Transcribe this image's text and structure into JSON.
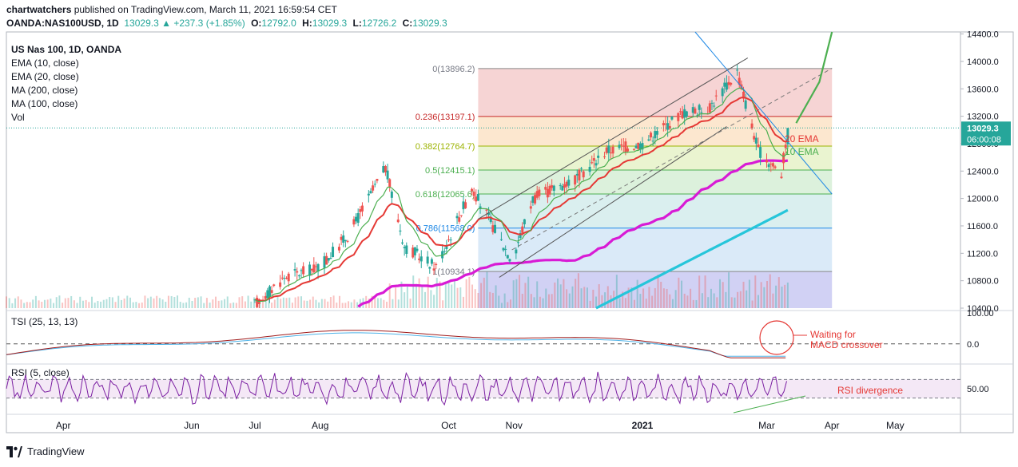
{
  "header": {
    "publisher": "chartwatchers",
    "published_text": " published on TradingView.com, March 11, 2021 16:59:54 CET",
    "symbol": "OANDA:NAS100USD, 1D",
    "last": "13029.3",
    "change": "▲ +237.3 (+1.85%)",
    "o_label": "O:",
    "o_value": "12792.0",
    "h_label": "H:",
    "h_value": "13029.3",
    "l_label": "L:",
    "l_value": "12726.2",
    "c_label": "C:",
    "c_value": "13029.3"
  },
  "legend": {
    "title": "US Nas 100, 1D, OANDA",
    "items": [
      "EMA (10, close)",
      "EMA (20, close)",
      "MA (200, close)",
      "MA (100, close)",
      "Vol"
    ]
  },
  "footer": {
    "brand": "TradingView"
  },
  "colors": {
    "up": "#26a69a",
    "down": "#ef5350",
    "ema10": "#4caf50",
    "ema20": "#e53935",
    "ma100": "#d81bd5",
    "ma200": "#26c6da",
    "tsi": "#a01c1c",
    "tsi_signal": "#4fb3e8",
    "rsi": "#7b1fa2",
    "annotation": "#e53935",
    "trendline": "#1e88e5",
    "arrow": "#4caf50",
    "price_badge": "#26a69a"
  },
  "chart_data": [
    {
      "type": "candlestick",
      "title": "US Nas 100, 1D, OANDA",
      "y_ticks": [
        "10400.0",
        "10800.0",
        "11200.0",
        "11600.0",
        "12000.0",
        "12400.0",
        "12800.0",
        "13200.0",
        "13600.0",
        "14000.0",
        "14400.0"
      ],
      "ylim": [
        10400,
        14430
      ],
      "x_ticks": [
        "Apr",
        "Jun",
        "Jul",
        "Aug",
        "Oct",
        "Nov",
        "2021",
        "Mar",
        "Apr",
        "May"
      ],
      "last_price": "13029.3",
      "countdown": "06:00:08",
      "ema_labels": [
        "20 EMA",
        "10 EMA"
      ],
      "fibonacci": [
        {
          "label": "0(13896.2)",
          "level": 13896.2
        },
        {
          "label": "0.236(13197.1)",
          "level": 13197.1
        },
        {
          "label": "0.382(12764.7)",
          "level": 12764.7
        },
        {
          "label": "0.5(12415.1)",
          "level": 12415.1
        },
        {
          "label": "0.618(12065.6)",
          "level": 12065.6
        },
        {
          "label": "0.786(11568.0)",
          "level": 11568.0
        },
        {
          "label": "1(10934.1)",
          "level": 10934.1
        }
      ],
      "trend": [
        {
          "date": "2020-07-01",
          "close": 10450
        },
        {
          "date": "2020-07-15",
          "close": 10850
        },
        {
          "date": "2020-08-01",
          "close": 11000
        },
        {
          "date": "2020-08-15",
          "close": 11500
        },
        {
          "date": "2020-09-01",
          "close": 12450
        },
        {
          "date": "2020-09-10",
          "close": 11300
        },
        {
          "date": "2020-09-25",
          "close": 11000
        },
        {
          "date": "2020-10-12",
          "close": 12150
        },
        {
          "date": "2020-10-31",
          "close": 11100
        },
        {
          "date": "2020-11-10",
          "close": 12000
        },
        {
          "date": "2020-12-01",
          "close": 12300
        },
        {
          "date": "2020-12-15",
          "close": 12700
        },
        {
          "date": "2021-01-01",
          "close": 12800
        },
        {
          "date": "2021-01-20",
          "close": 13250
        },
        {
          "date": "2021-02-01",
          "close": 13300
        },
        {
          "date": "2021-02-15",
          "close": 13850
        },
        {
          "date": "2021-02-25",
          "close": 12700
        },
        {
          "date": "2021-03-08",
          "close": 12350
        },
        {
          "date": "2021-03-11",
          "close": 13029.3
        }
      ]
    },
    {
      "type": "line",
      "title": "TSI (25, 13, 13)",
      "y_ticks": [
        "100.00",
        "0.0"
      ],
      "annotation": "Waiting for\nMACD crossover"
    },
    {
      "type": "line",
      "title": "RSI (5, close)",
      "y_ticks": [
        "50.00"
      ],
      "annotation": "RSI divergence"
    }
  ]
}
